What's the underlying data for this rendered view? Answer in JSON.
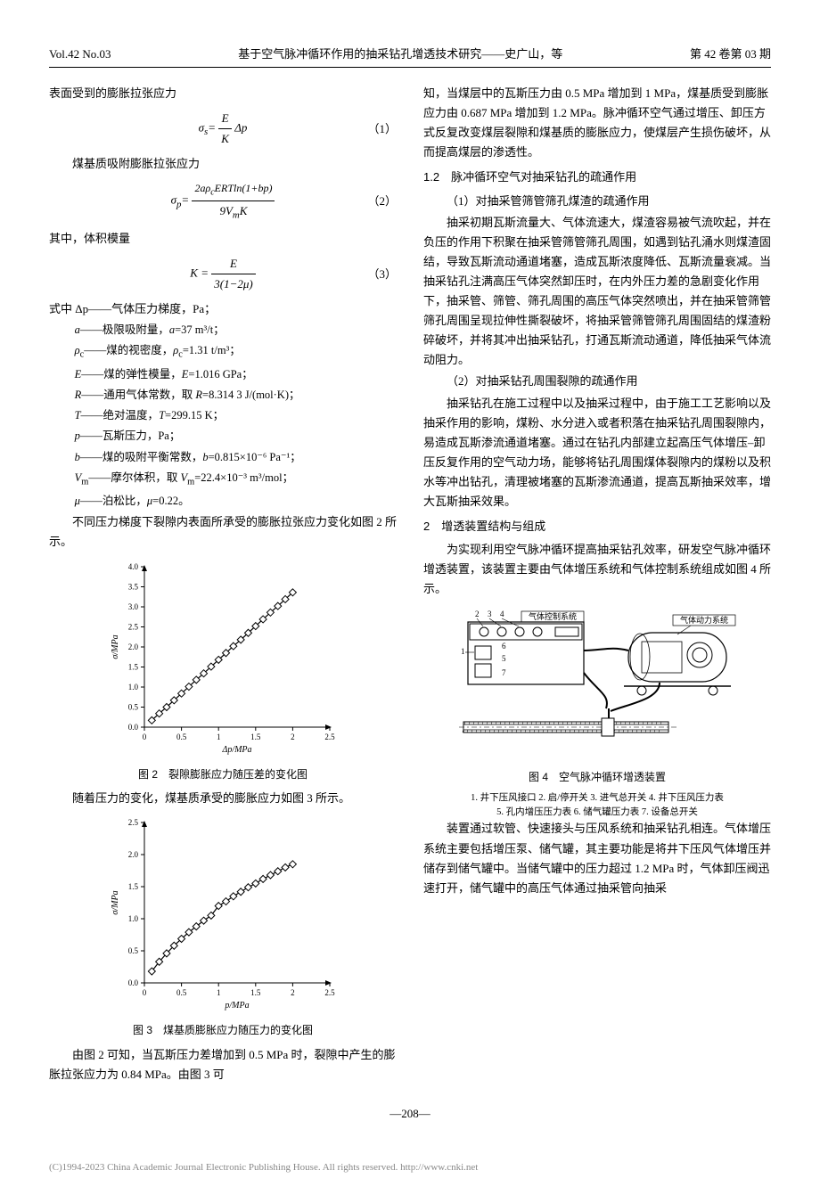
{
  "header": {
    "left": "Vol.42 No.03",
    "center": "基于空气脉冲循环作用的抽采钻孔增透技术研究——史广山，等",
    "right": "第 42 卷第 03 期"
  },
  "left_col": {
    "p1": "表面受到的膨胀拉张应力",
    "eq1_lhs": "σ",
    "eq1_sub": "s",
    "eq1_num_top": "E",
    "eq1_num_bot": "K",
    "eq1_tail": " Δp",
    "eq1_no": "（1）",
    "p2": "煤基质吸附膨胀拉张应力",
    "eq2_lhs": "σ",
    "eq2_sub": "p",
    "eq2_top": "2aρ_c ERT ln(1+bp)",
    "eq2_bot": "9V_m K",
    "eq2_no": "（2）",
    "p3": "其中，体积模量",
    "eq3_lhs": "K =",
    "eq3_top": "E",
    "eq3_bot": "3(1−2μ)",
    "eq3_no": "（3）",
    "defs_head": "式中  Δp——气体压力梯度，Pa；",
    "d1": "a——极限吸附量，a=37 m³/t；",
    "d2": "ρ_c——煤的视密度，ρ_c=1.31 t/m³；",
    "d3": "E——煤的弹性模量，E=1.016 GPa；",
    "d4": "R——通用气体常数，取 R=8.314 3 J/(mol·K)；",
    "d5": "T——绝对温度，T=299.15 K；",
    "d6": "p——瓦斯压力，Pa；",
    "d7": "b——煤的吸附平衡常数，b=0.815×10⁻⁶ Pa⁻¹；",
    "d8": "V_m——摩尔体积，取 V_m=22.4×10⁻³ m³/mol；",
    "d9": "μ——泊松比，μ=0.22。",
    "p4": "不同压力梯度下裂隙内表面所承受的膨胀拉张应力变化如图 2 所示。",
    "fig2_caption": "图 2　裂隙膨胀应力随压差的变化图",
    "p5": "随着压力的变化，煤基质承受的膨胀应力如图 3 所示。",
    "fig3_caption": "图 3　煤基质膨胀应力随压力的变化图",
    "p6": "由图 2 可知，当瓦斯压力差增加到 0.5 MPa 时，裂隙中产生的膨胀拉张应力为 0.84 MPa。由图 3 可"
  },
  "right_col": {
    "p1": "知，当煤层中的瓦斯压力由 0.5 MPa 增加到 1 MPa，煤基质受到膨胀应力由 0.687 MPa 增加到 1.2 MPa。脉冲循环空气通过增压、卸压方式反复改变煤层裂隙和煤基质的膨胀应力，使煤层产生损伤破坏，从而提高煤层的渗透性。",
    "h12": "1.2　脉冲循环空气对抽采钻孔的疏通作用",
    "p2_head": "（1）对抽采管筛管筛孔煤渣的疏通作用",
    "p2": "抽采初期瓦斯流量大、气体流速大，煤渣容易被气流吹起，并在负压的作用下积聚在抽采管筛管筛孔周围，如遇到钻孔涌水则煤渣固结，导致瓦斯流动通道堵塞，造成瓦斯浓度降低、瓦斯流量衰减。当抽采钻孔注满高压气体突然卸压时，在内外压力差的急剧变化作用下，抽采管、筛管、筛孔周围的高压气体突然喷出，并在抽采管筛管筛孔周围呈现拉伸性撕裂破坏，将抽采管筛管筛孔周围固结的煤渣粉碎破坏，并将其冲出抽采钻孔，打通瓦斯流动通道，降低抽采气体流动阻力。",
    "p3_head": "（2）对抽采钻孔周围裂隙的疏通作用",
    "p3": "抽采钻孔在施工过程中以及抽采过程中，由于施工工艺影响以及抽采作用的影响，煤粉、水分进入或者积落在抽采钻孔周围裂隙内，易造成瓦斯渗流通道堵塞。通过在钻孔内部建立起高压气体增压–卸压反复作用的空气动力场，能够将钻孔周围煤体裂隙内的煤粉以及积水等冲出钻孔，清理被堵塞的瓦斯渗流通道，提高瓦斯抽采效率，增大瓦斯抽采效果。",
    "h2": "2　增透装置结构与组成",
    "p4": "为实现利用空气脉冲循环提高抽采钻孔效率，研发空气脉冲循环增透装置，该装置主要由气体增压系统和气体控制系统组成如图 4 所示。",
    "fig4_caption": "图 4　空气脉冲循环增透装置",
    "fig4_labels_l1": "1. 井下压风接口  2. 启/停开关  3. 进气总开关  4. 井下压风压力表",
    "fig4_labels_l2": "5. 孔内增压压力表  6. 储气罐压力表  7. 设备总开关",
    "p5": "装置通过软管、快速接头与压风系统和抽采钻孔相连。气体增压系统主要包括增压泵、储气罐，其主要功能是将井下压风气体增压并储存到储气罐中。当储气罐中的压力超过 1.2 MPa 时，气体卸压阀迅速打开，储气罐中的高压气体通过抽采管向抽采"
  },
  "fig2": {
    "type": "line-scatter",
    "xlabel": "Δp/MPa",
    "ylabel": "σ/MPa",
    "xlim": [
      0,
      2.5
    ],
    "ylim": [
      0,
      4.0
    ],
    "xticks": [
      0,
      0.5,
      1.0,
      1.5,
      2.0,
      2.5
    ],
    "yticks": [
      0,
      0.5,
      1.0,
      1.5,
      2.0,
      2.5,
      3.0,
      3.5,
      4.0
    ],
    "x": [
      0.1,
      0.2,
      0.3,
      0.4,
      0.5,
      0.6,
      0.7,
      0.8,
      0.9,
      1.0,
      1.1,
      1.2,
      1.3,
      1.4,
      1.5,
      1.6,
      1.7,
      1.8,
      1.9,
      2.0
    ],
    "y": [
      0.17,
      0.34,
      0.5,
      0.67,
      0.84,
      1.01,
      1.18,
      1.34,
      1.51,
      1.68,
      1.85,
      2.02,
      2.18,
      2.35,
      2.52,
      2.69,
      2.86,
      3.02,
      3.19,
      3.36
    ],
    "line_color": "#000000",
    "marker": "diamond",
    "marker_fill": "#ffffff",
    "marker_size": 4,
    "line_width": 1.2,
    "background": "#ffffff",
    "axis_color": "#000000",
    "font_size": 9
  },
  "fig3": {
    "type": "line-scatter",
    "xlabel": "p/MPa",
    "ylabel": "σ/MPa",
    "xlim": [
      0,
      2.5
    ],
    "ylim": [
      0,
      2.5
    ],
    "xticks": [
      0,
      0.5,
      1.0,
      1.5,
      2.0,
      2.5
    ],
    "yticks": [
      0,
      0.5,
      1.0,
      1.5,
      2.0,
      2.5
    ],
    "x": [
      0.1,
      0.2,
      0.3,
      0.4,
      0.5,
      0.6,
      0.7,
      0.8,
      0.9,
      1.0,
      1.1,
      1.2,
      1.3,
      1.4,
      1.5,
      1.6,
      1.7,
      1.8,
      1.9,
      2.0
    ],
    "y": [
      0.18,
      0.33,
      0.46,
      0.58,
      0.687,
      0.79,
      0.88,
      0.97,
      1.05,
      1.2,
      1.27,
      1.35,
      1.42,
      1.49,
      1.55,
      1.62,
      1.68,
      1.74,
      1.8,
      1.85
    ],
    "line_color": "#000000",
    "marker": "diamond",
    "marker_fill": "#ffffff",
    "marker_size": 4,
    "line_width": 1.2,
    "background": "#ffffff",
    "axis_color": "#000000",
    "font_size": 9
  },
  "fig4": {
    "type": "schematic",
    "label_ctrl": "气体控制系统",
    "label_power": "气体动力系统",
    "numbers": [
      "1",
      "2",
      "3",
      "4",
      "5",
      "6",
      "7"
    ],
    "stroke": "#000000",
    "bg": "#ffffff"
  },
  "page_no": "—208—",
  "copyright": "(C)1994-2023 China Academic Journal Electronic Publishing House. All rights reserved.   http://www.cnki.net"
}
